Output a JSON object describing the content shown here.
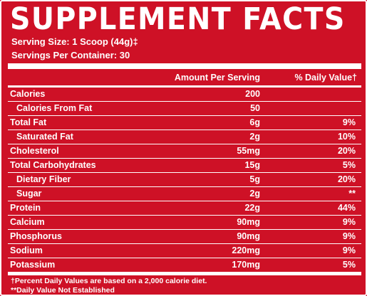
{
  "title": "SUPPLEMENT FACTS",
  "serving_size": "Serving Size: 1 Scoop (44g)‡",
  "servings_per_container": "Servings Per Container: 30",
  "header": {
    "amount": "Amount Per Serving",
    "daily_value": "% Daily Value†"
  },
  "rows": [
    {
      "name": "Calories",
      "amount": "200",
      "dv": "",
      "sub": false
    },
    {
      "name": "Calories From Fat",
      "amount": "50",
      "dv": "",
      "sub": true
    },
    {
      "name": "Total Fat",
      "amount": "6g",
      "dv": "9%",
      "sub": false
    },
    {
      "name": "Saturated Fat",
      "amount": "2g",
      "dv": "10%",
      "sub": true
    },
    {
      "name": "Cholesterol",
      "amount": "55mg",
      "dv": "20%",
      "sub": false
    },
    {
      "name": "Total Carbohydrates",
      "amount": "15g",
      "dv": "5%",
      "sub": false
    },
    {
      "name": "Dietary Fiber",
      "amount": "5g",
      "dv": "20%",
      "sub": true
    },
    {
      "name": "Sugar",
      "amount": "2g",
      "dv": "**",
      "sub": true
    },
    {
      "name": "Protein",
      "amount": "22g",
      "dv": "44%",
      "sub": false
    },
    {
      "name": "Calcium",
      "amount": "90mg",
      "dv": "9%",
      "sub": false
    },
    {
      "name": "Phosphorus",
      "amount": "90mg",
      "dv": "9%",
      "sub": false
    },
    {
      "name": "Sodium",
      "amount": "220mg",
      "dv": "9%",
      "sub": false
    },
    {
      "name": "Potassium",
      "amount": "170mg",
      "dv": "5%",
      "sub": false
    }
  ],
  "footnotes": [
    "†Percent Daily Values are based on a 2,000 calorie diet.",
    "**Daily Value Not Established"
  ],
  "colors": {
    "background": "#ce1126",
    "text": "#ffffff"
  }
}
